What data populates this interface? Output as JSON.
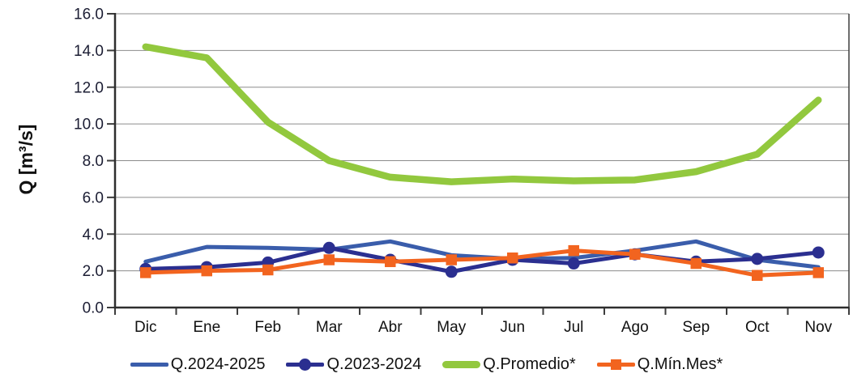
{
  "chart_data": {
    "type": "line",
    "title": "",
    "xlabel": "",
    "ylabel": "Q [m³/s]",
    "categories": [
      "Dic",
      "Ene",
      "Feb",
      "Mar",
      "Abr",
      "May",
      "Jun",
      "Jul",
      "Ago",
      "Sep",
      "Oct",
      "Nov"
    ],
    "ylim": [
      0,
      16
    ],
    "ytick_step": 2,
    "ytick_labels": [
      "0.0",
      "2.0",
      "4.0",
      "6.0",
      "8.0",
      "10.0",
      "12.0",
      "14.0",
      "16.0"
    ],
    "grid": "horizontal",
    "legend_position": "bottom",
    "series": [
      {
        "name": "Q.2024-2025",
        "color": "#3a5dab",
        "marker": "none",
        "line_width": 5,
        "values": [
          2.5,
          3.3,
          3.25,
          3.15,
          3.6,
          2.85,
          2.65,
          2.7,
          3.1,
          3.6,
          2.6,
          2.2
        ]
      },
      {
        "name": "Q.2023-2024",
        "color": "#2b2f90",
        "marker": "circle",
        "line_width": 5,
        "values": [
          2.1,
          2.2,
          2.45,
          3.25,
          2.6,
          1.95,
          2.6,
          2.4,
          2.9,
          2.5,
          2.65,
          3.0
        ]
      },
      {
        "name": "Q.Promedio*",
        "color": "#92c83e",
        "marker": "none",
        "line_width": 8.5,
        "values": [
          14.2,
          13.6,
          10.1,
          8.0,
          7.1,
          6.85,
          7.0,
          6.9,
          6.95,
          7.4,
          8.35,
          11.3
        ]
      },
      {
        "name": "Q.Mín.Mes*",
        "color": "#f2641f",
        "marker": "square",
        "line_width": 5,
        "values": [
          1.9,
          2.0,
          2.05,
          2.6,
          2.5,
          2.6,
          2.7,
          3.1,
          2.9,
          2.4,
          1.75,
          1.9
        ]
      }
    ]
  },
  "colors": {
    "background": "#ffffff",
    "axis": "#2e2e2e",
    "tick": "#3d3d3d",
    "gridline": "#8c8c8c",
    "ytick_text": "#1b1d33",
    "xtick_text": "#111111"
  }
}
